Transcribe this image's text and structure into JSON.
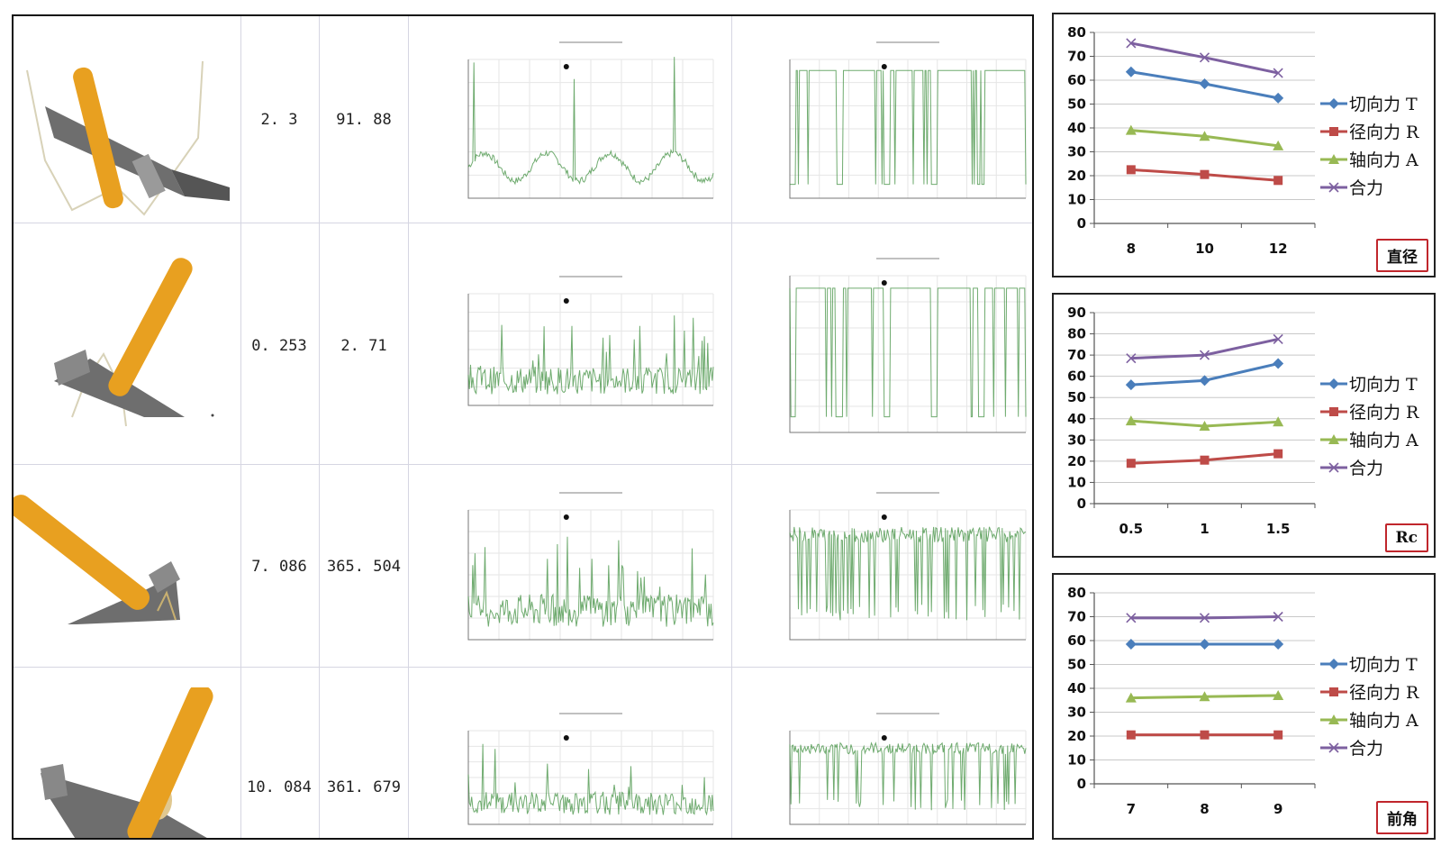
{
  "table": {
    "rows": [
      {
        "value_a": "2. 3",
        "value_b": "91. 88"
      },
      {
        "value_a": "0. 253",
        "value_b": "2. 71"
      },
      {
        "value_a": "7. 086",
        "value_b": "365. 504"
      },
      {
        "value_a": "10. 084",
        "value_b": "361. 679"
      }
    ]
  },
  "colors": {
    "tangential": "#4a7ebb",
    "radial": "#be4b48",
    "axial": "#98b954",
    "resultant": "#7d60a0",
    "grid": "#c8c8c8",
    "sim_line": "#3f8f3f",
    "tool_orange": "#e8a020",
    "tool_gray": "#707070",
    "label_border": "#c0262c"
  },
  "chart_data": [
    {
      "type": "line",
      "corner_label": "直径",
      "categories": [
        "8",
        "10",
        "12"
      ],
      "ylim": [
        0,
        80
      ],
      "yticks": [
        "0",
        "10",
        "20",
        "30",
        "40",
        "50",
        "60",
        "70",
        "80"
      ],
      "grid": true,
      "legend_position": "right",
      "series": [
        {
          "name": "切向力 T",
          "values": [
            63.5,
            58.5,
            52.5
          ]
        },
        {
          "name": "径向力 R",
          "values": [
            22.5,
            20.5,
            18.0
          ]
        },
        {
          "name": "轴向力 A",
          "values": [
            39.0,
            36.5,
            32.5
          ]
        },
        {
          "name": "合力",
          "values": [
            75.5,
            69.5,
            63.0
          ]
        }
      ]
    },
    {
      "type": "line",
      "corner_label": "Rc",
      "categories": [
        "0.5",
        "1",
        "1.5"
      ],
      "ylim": [
        0,
        90
      ],
      "yticks": [
        "0",
        "10",
        "20",
        "30",
        "40",
        "50",
        "60",
        "70",
        "80",
        "90"
      ],
      "grid": true,
      "legend_position": "right",
      "series": [
        {
          "name": "切向力 T",
          "values": [
            56.0,
            58.0,
            66.0
          ]
        },
        {
          "name": "径向力 R",
          "values": [
            19.0,
            20.5,
            23.5
          ]
        },
        {
          "name": "轴向力 A",
          "values": [
            39.0,
            36.5,
            38.5
          ]
        },
        {
          "name": "合力",
          "values": [
            68.5,
            70.0,
            77.5
          ]
        }
      ]
    },
    {
      "type": "line",
      "corner_label": "前角",
      "categories": [
        "7",
        "8",
        "9"
      ],
      "ylim": [
        0,
        80
      ],
      "yticks": [
        "0",
        "10",
        "20",
        "30",
        "40",
        "50",
        "60",
        "70",
        "80"
      ],
      "grid": true,
      "legend_position": "right",
      "series": [
        {
          "name": "切向力 T",
          "values": [
            58.5,
            58.5,
            58.5
          ]
        },
        {
          "name": "径向力 R",
          "values": [
            20.5,
            20.5,
            20.5
          ]
        },
        {
          "name": "轴向力 A",
          "values": [
            36.0,
            36.5,
            37.0
          ]
        },
        {
          "name": "合力",
          "values": [
            69.5,
            69.5,
            70.0
          ]
        }
      ]
    }
  ]
}
